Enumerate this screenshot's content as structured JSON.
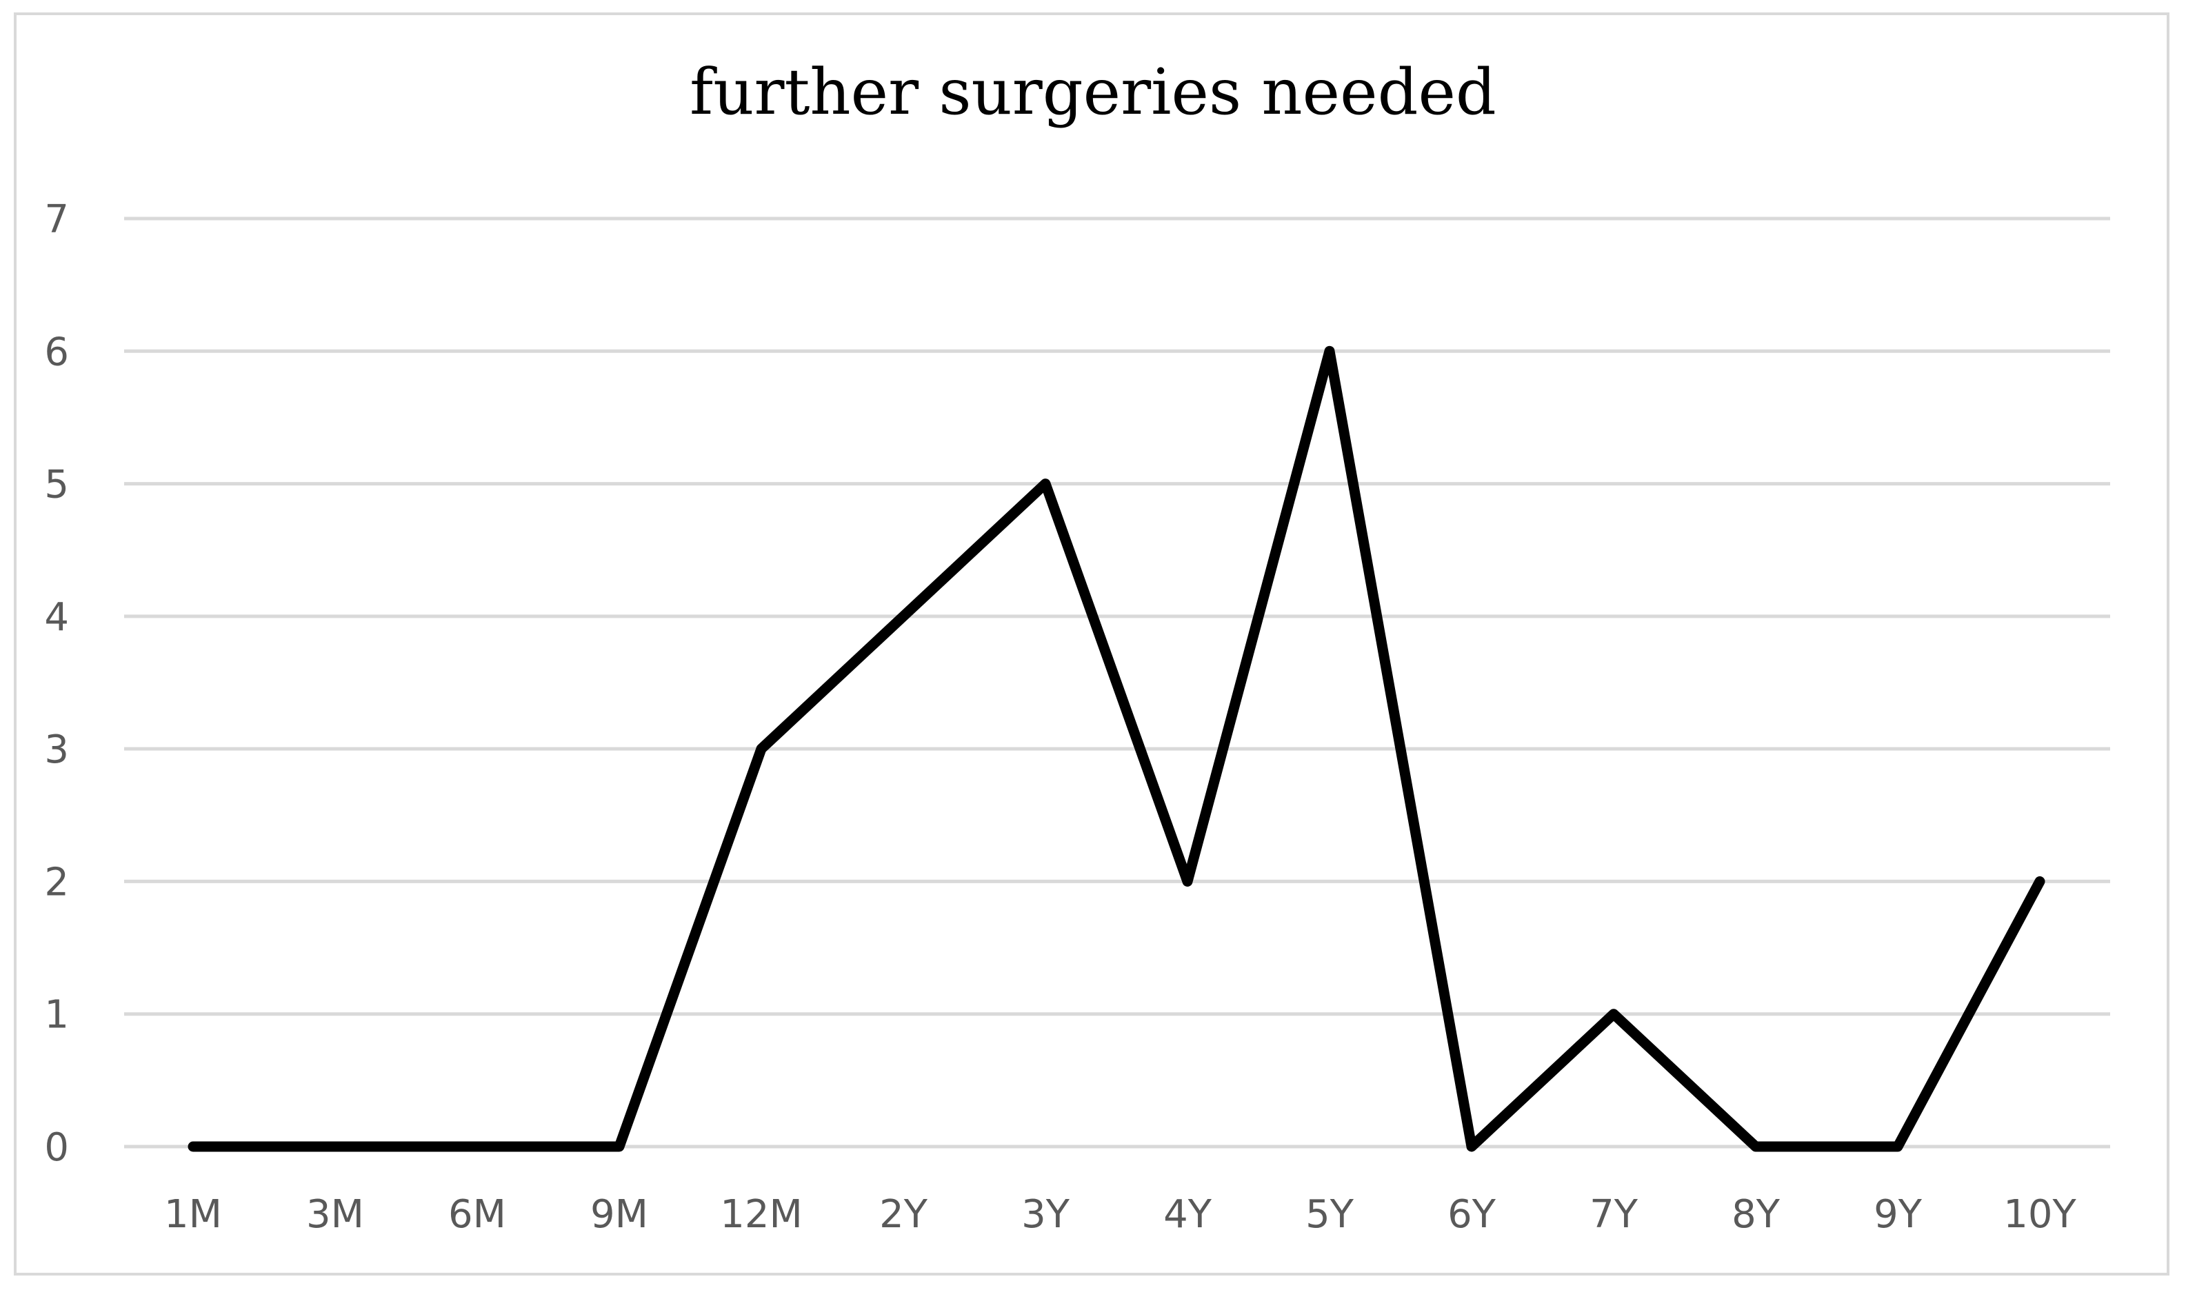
{
  "chart_data": {
    "type": "line",
    "title": "further surgeries needed",
    "xlabel": "",
    "ylabel": "",
    "categories": [
      "1M",
      "3M",
      "6M",
      "9M",
      "12M",
      "2Y",
      "3Y",
      "4Y",
      "5Y",
      "6Y",
      "7Y",
      "8Y",
      "9Y",
      "10Y"
    ],
    "series": [
      {
        "values": [
          0,
          0,
          0,
          0,
          3,
          4,
          5,
          2,
          6,
          0,
          1,
          0,
          0,
          2
        ]
      }
    ],
    "ylim": [
      0,
      7
    ],
    "yticks": [
      0,
      1,
      2,
      3,
      4,
      5,
      6,
      7
    ],
    "grid": true,
    "legend": "none",
    "colors": {
      "line": "#000000",
      "grid": "#d9d9d9",
      "tick_text": "#595959",
      "border": "#d9d9d9"
    }
  }
}
